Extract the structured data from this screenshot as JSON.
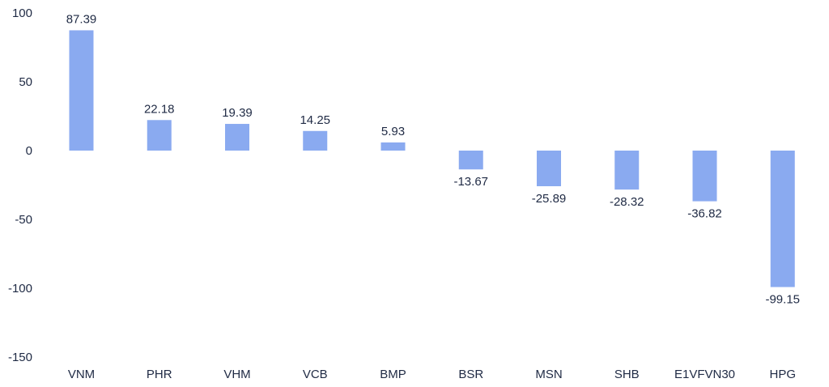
{
  "chart_data": {
    "type": "bar",
    "title": "",
    "xlabel": "",
    "ylabel": "",
    "categories": [
      "VNM",
      "PHR",
      "VHM",
      "VCB",
      "BMP",
      "BSR",
      "MSN",
      "SHB",
      "E1VFVN30",
      "HPG"
    ],
    "values": [
      87.39,
      22.18,
      19.39,
      14.25,
      5.93,
      -13.67,
      -25.89,
      -28.32,
      -36.82,
      -99.15
    ],
    "value_labels": [
      "87.39",
      "22.18",
      "19.39",
      "14.25",
      "5.93",
      "-13.67",
      "-25.89",
      "-28.32",
      "-36.82",
      "-99.15"
    ],
    "ylim": [
      -150,
      100
    ],
    "yticks": [
      100,
      50,
      0,
      -50,
      -100,
      -150
    ],
    "grid": false,
    "legend": "none",
    "bar_color": "#8aaaf0"
  }
}
